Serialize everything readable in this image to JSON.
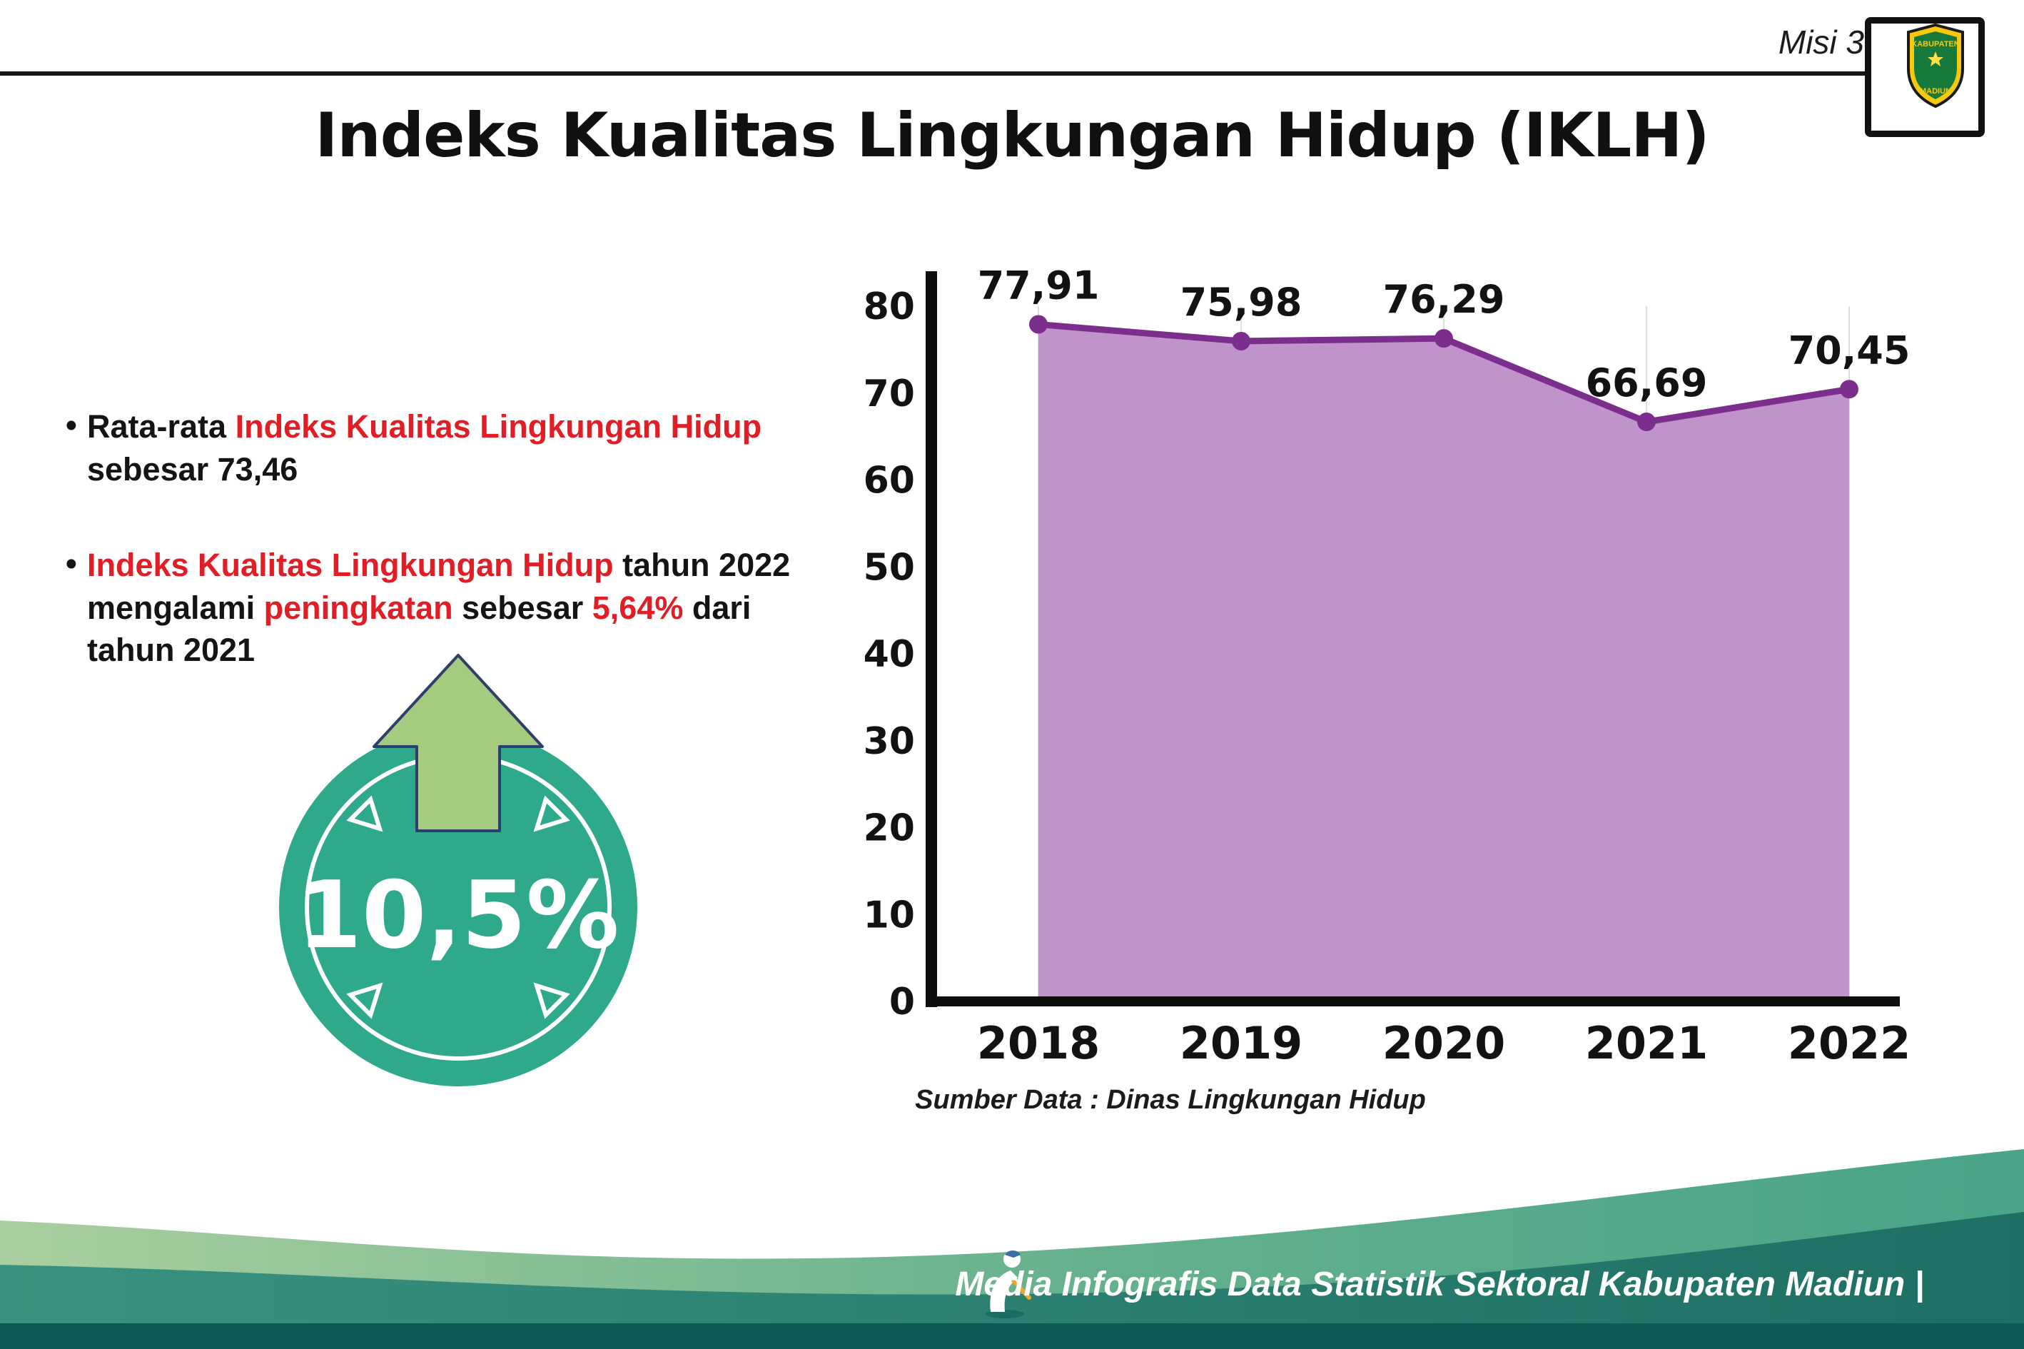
{
  "header": {
    "misi_label": "Misi 3",
    "title": "Indeks Kualitas Lingkungan Hidup (IKLH)",
    "logo": {
      "top_text": "KABUPATEN",
      "bottom_text": "MADIUN"
    }
  },
  "bullets": {
    "marker": "•",
    "item1": {
      "seg1": "Rata-rata ",
      "seg2": "Indeks Kualitas Lingkungan Hidup",
      "seg3": " sebesar 73,46"
    },
    "item2": {
      "seg1": "Indeks Kualitas Lingkungan Hidup",
      "seg2": " tahun 2022 mengalami ",
      "seg3": "peningkatan",
      "seg4": " sebesar ",
      "seg5": "5,64%",
      "seg6": " dari tahun 2021"
    }
  },
  "badge": {
    "value": "10,5%"
  },
  "chart_data": {
    "type": "area",
    "title": "Indeks Kualitas Lingkungan Hidup (IKLH)",
    "categories": [
      "2018",
      "2019",
      "2020",
      "2021",
      "2022"
    ],
    "values": [
      77.91,
      75.98,
      76.29,
      66.69,
      70.45
    ],
    "point_labels": [
      "77,91",
      "75,98",
      "76,29",
      "66,69",
      "70,45"
    ],
    "xlabel": "",
    "ylabel": "",
    "ylim": [
      0,
      80
    ],
    "yticks": [
      0,
      10,
      20,
      30,
      40,
      50,
      60,
      70,
      80
    ],
    "grid": "vertical-light",
    "legend": "none",
    "fill_color": "#c193cb",
    "line_color": "#7b2e8c",
    "source_note": "Sumber Data : Dinas Lingkungan Hidup"
  },
  "footer": {
    "credit": "Media Infografis Data Statistik Sektoral Kabupaten Madiun |"
  },
  "colors": {
    "accent_red": "#e11d26",
    "badge_teal": "#2ea98b",
    "arrow_green": "#a5cb80",
    "footer_dark": "#0d5a55"
  }
}
